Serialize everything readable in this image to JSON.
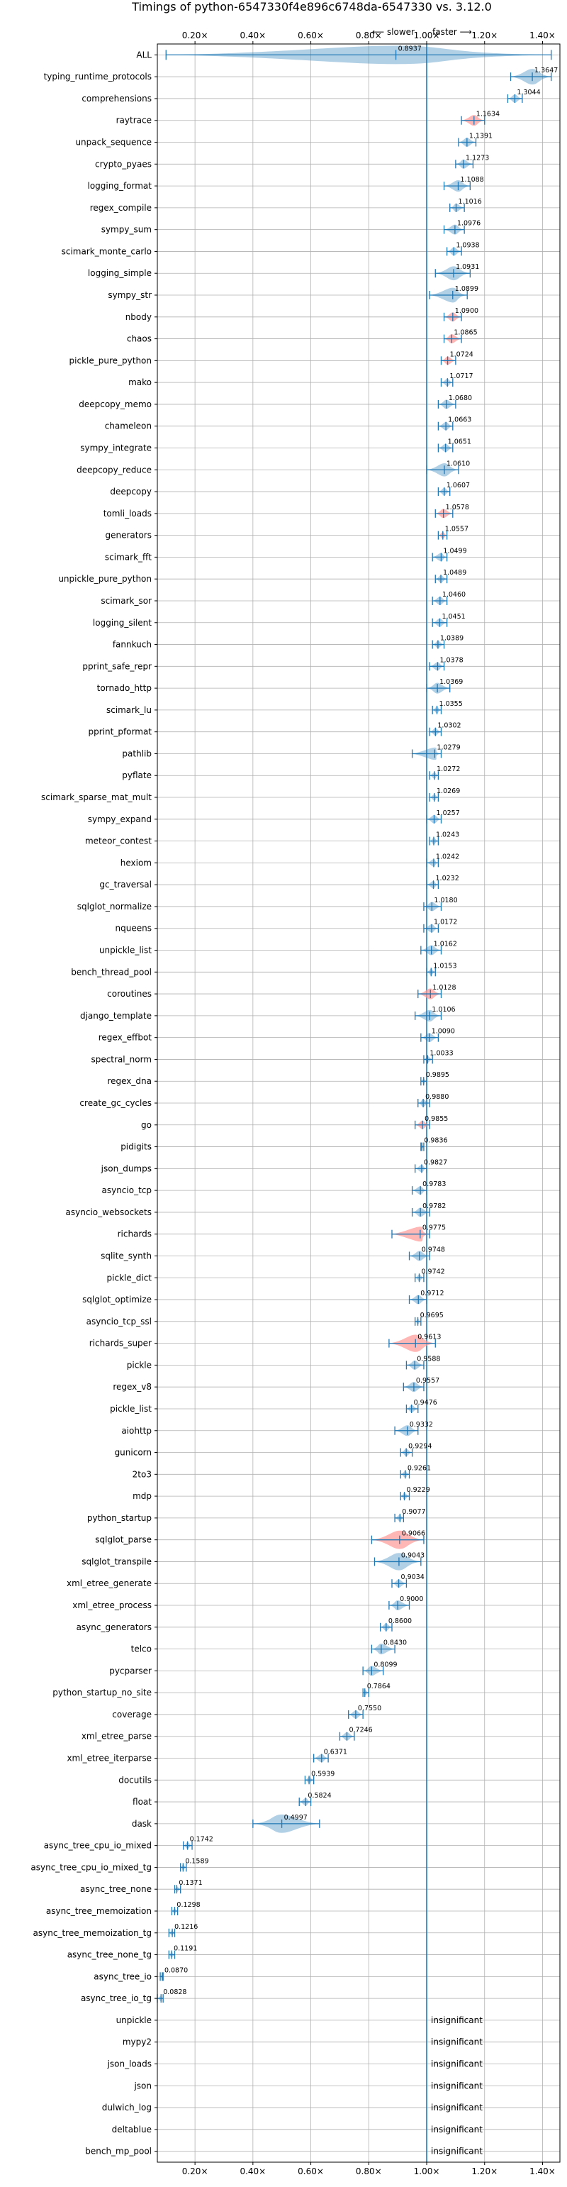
{
  "chart_data": {
    "type": "violin",
    "title": "Timings of python-6547330f4e896c6748da-6547330 vs. 3.12.0",
    "xlabel": "",
    "ylabel": "",
    "xlim": [
      0.07,
      1.46
    ],
    "xticks": [
      0.2,
      0.4,
      0.6,
      0.8,
      1.0,
      1.2,
      1.4
    ],
    "xtick_labels": [
      "0.20×",
      "0.40×",
      "0.60×",
      "0.80×",
      "1.00×",
      "1.20×",
      "1.40×"
    ],
    "grid": true,
    "reference_line": 1.0,
    "annotation_slower": "⟵ slower",
    "annotation_faster": "faster ⟶",
    "insignificant_label": "insignificant",
    "colors": {
      "violin_blue": "#1f77b4",
      "violin_red": "#ff9896",
      "line": "#1f77b4",
      "grid": "#b0b0b0"
    },
    "categories": [
      "ALL",
      "typing_runtime_protocols",
      "comprehensions",
      "raytrace",
      "unpack_sequence",
      "crypto_pyaes",
      "logging_format",
      "regex_compile",
      "sympy_sum",
      "scimark_monte_carlo",
      "logging_simple",
      "sympy_str",
      "nbody",
      "chaos",
      "pickle_pure_python",
      "mako",
      "deepcopy_memo",
      "chameleon",
      "sympy_integrate",
      "deepcopy_reduce",
      "deepcopy",
      "tomli_loads",
      "generators",
      "scimark_fft",
      "unpickle_pure_python",
      "scimark_sor",
      "logging_silent",
      "fannkuch",
      "pprint_safe_repr",
      "tornado_http",
      "scimark_lu",
      "pprint_pformat",
      "pathlib",
      "pyflate",
      "scimark_sparse_mat_mult",
      "sympy_expand",
      "meteor_contest",
      "hexiom",
      "gc_traversal",
      "sqlglot_normalize",
      "nqueens",
      "unpickle_list",
      "bench_thread_pool",
      "coroutines",
      "django_template",
      "regex_effbot",
      "spectral_norm",
      "regex_dna",
      "create_gc_cycles",
      "go",
      "pidigits",
      "json_dumps",
      "asyncio_tcp",
      "asyncio_websockets",
      "richards",
      "sqlite_synth",
      "pickle_dict",
      "sqlglot_optimize",
      "asyncio_tcp_ssl",
      "richards_super",
      "pickle",
      "regex_v8",
      "pickle_list",
      "aiohttp",
      "gunicorn",
      "2to3",
      "mdp",
      "python_startup",
      "sqlglot_parse",
      "sqlglot_transpile",
      "xml_etree_generate",
      "xml_etree_process",
      "async_generators",
      "telco",
      "pycparser",
      "python_startup_no_site",
      "coverage",
      "xml_etree_parse",
      "xml_etree_iterparse",
      "docutils",
      "float",
      "dask",
      "async_tree_cpu_io_mixed",
      "async_tree_cpu_io_mixed_tg",
      "async_tree_none",
      "async_tree_memoization",
      "async_tree_memoization_tg",
      "async_tree_none_tg",
      "async_tree_io",
      "async_tree_io_tg",
      "unpickle",
      "mypy2",
      "json_loads",
      "json",
      "dulwich_log",
      "deltablue",
      "bench_mp_pool"
    ],
    "values": [
      0.8937,
      1.3647,
      1.3044,
      1.1634,
      1.1391,
      1.1273,
      1.1088,
      1.1016,
      1.0976,
      1.0938,
      1.0931,
      1.0899,
      1.09,
      1.0865,
      1.0724,
      1.0717,
      1.068,
      1.0663,
      1.0651,
      1.061,
      1.0607,
      1.0578,
      1.0557,
      1.0499,
      1.0489,
      1.046,
      1.0451,
      1.0389,
      1.0378,
      1.0369,
      1.0355,
      1.0302,
      1.0279,
      1.0272,
      1.0269,
      1.0257,
      1.0243,
      1.0242,
      1.0232,
      1.018,
      1.0172,
      1.0162,
      1.0153,
      1.0128,
      1.0106,
      1.009,
      1.0033,
      0.9895,
      0.988,
      0.9855,
      0.9836,
      0.9827,
      0.9783,
      0.9782,
      0.9775,
      0.9748,
      0.9742,
      0.9712,
      0.9695,
      0.9613,
      0.9588,
      0.9557,
      0.9476,
      0.9332,
      0.9294,
      0.9261,
      0.9229,
      0.9077,
      0.9066,
      0.9043,
      0.9034,
      0.9,
      0.86,
      0.843,
      0.8099,
      0.7864,
      0.755,
      0.7246,
      0.6371,
      0.5939,
      0.5824,
      0.4997,
      0.1742,
      0.1589,
      0.1371,
      0.1298,
      0.1216,
      0.1191,
      0.087,
      0.0828,
      null,
      null,
      null,
      null,
      null,
      null,
      null
    ],
    "value_labels": [
      "0.8937",
      "1.3647",
      "1.3044",
      "1.1634",
      "1.1391",
      "1.1273",
      "1.1088",
      "1.1016",
      "1.0976",
      "1.0938",
      "1.0931",
      "1.0899",
      "1.0900",
      "1.0865",
      "1.0724",
      "1.0717",
      "1.0680",
      "1.0663",
      "1.0651",
      "1.0610",
      "1.0607",
      "1.0578",
      "1.0557",
      "1.0499",
      "1.0489",
      "1.0460",
      "1.0451",
      "1.0389",
      "1.0378",
      "1.0369",
      "1.0355",
      "1.0302",
      "1.0279",
      "1.0272",
      "1.0269",
      "1.0257",
      "1.0243",
      "1.0242",
      "1.0232",
      "1.0180",
      "1.0172",
      "1.0162",
      "1.0153",
      "1.0128",
      "1.0106",
      "1.0090",
      "1.0033",
      "0.9895",
      "0.9880",
      "0.9855",
      "0.9836",
      "0.9827",
      "0.9783",
      "0.9782",
      "0.9775",
      "0.9748",
      "0.9742",
      "0.9712",
      "0.9695",
      "0.9613",
      "0.9588",
      "0.9557",
      "0.9476",
      "0.9332",
      "0.9294",
      "0.9261",
      "0.9229",
      "0.9077",
      "0.9066",
      "0.9043",
      "0.9034",
      "0.9000",
      "0.8600",
      "0.8430",
      "0.8099",
      "0.7864",
      "0.7550",
      "0.7246",
      "0.6371",
      "0.5939",
      "0.5824",
      "0.4997",
      "0.1742",
      "0.1589",
      "0.1371",
      "0.1298",
      "0.1216",
      "0.1191",
      "0.0870",
      "0.0828",
      "",
      "",
      "",
      "",
      "",
      "",
      ""
    ],
    "ranges": [
      [
        0.1,
        1.43
      ],
      [
        1.29,
        1.43
      ],
      [
        1.28,
        1.33
      ],
      [
        1.12,
        1.2
      ],
      [
        1.11,
        1.17
      ],
      [
        1.1,
        1.16
      ],
      [
        1.06,
        1.15
      ],
      [
        1.08,
        1.13
      ],
      [
        1.06,
        1.13
      ],
      [
        1.07,
        1.12
      ],
      [
        1.03,
        1.15
      ],
      [
        1.01,
        1.14
      ],
      [
        1.06,
        1.12
      ],
      [
        1.06,
        1.12
      ],
      [
        1.05,
        1.1
      ],
      [
        1.05,
        1.09
      ],
      [
        1.04,
        1.1
      ],
      [
        1.04,
        1.09
      ],
      [
        1.04,
        1.09
      ],
      [
        1.0,
        1.11
      ],
      [
        1.04,
        1.08
      ],
      [
        1.03,
        1.09
      ],
      [
        1.04,
        1.07
      ],
      [
        1.02,
        1.07
      ],
      [
        1.03,
        1.07
      ],
      [
        1.02,
        1.07
      ],
      [
        1.02,
        1.07
      ],
      [
        1.02,
        1.06
      ],
      [
        1.01,
        1.06
      ],
      [
        1.0,
        1.08
      ],
      [
        1.02,
        1.05
      ],
      [
        1.01,
        1.05
      ],
      [
        0.95,
        1.05
      ],
      [
        1.01,
        1.04
      ],
      [
        1.01,
        1.04
      ],
      [
        1.0,
        1.05
      ],
      [
        1.01,
        1.04
      ],
      [
        1.0,
        1.04
      ],
      [
        1.0,
        1.04
      ],
      [
        0.99,
        1.05
      ],
      [
        0.99,
        1.04
      ],
      [
        0.98,
        1.05
      ],
      [
        1.0,
        1.03
      ],
      [
        0.97,
        1.05
      ],
      [
        0.96,
        1.05
      ],
      [
        0.98,
        1.04
      ],
      [
        0.99,
        1.02
      ],
      [
        0.98,
        1.0
      ],
      [
        0.97,
        1.01
      ],
      [
        0.96,
        1.01
      ],
      [
        0.98,
        0.99
      ],
      [
        0.96,
        1.0
      ],
      [
        0.95,
        1.0
      ],
      [
        0.95,
        1.01
      ],
      [
        0.88,
        1.01
      ],
      [
        0.94,
        1.01
      ],
      [
        0.96,
        0.99
      ],
      [
        0.94,
        1.0
      ],
      [
        0.96,
        0.98
      ],
      [
        0.87,
        1.03
      ],
      [
        0.93,
        0.99
      ],
      [
        0.92,
        0.99
      ],
      [
        0.93,
        0.97
      ],
      [
        0.89,
        0.97
      ],
      [
        0.91,
        0.95
      ],
      [
        0.91,
        0.94
      ],
      [
        0.91,
        0.94
      ],
      [
        0.89,
        0.92
      ],
      [
        0.81,
        0.99
      ],
      [
        0.82,
        0.98
      ],
      [
        0.88,
        0.93
      ],
      [
        0.87,
        0.94
      ],
      [
        0.84,
        0.88
      ],
      [
        0.81,
        0.89
      ],
      [
        0.78,
        0.85
      ],
      [
        0.78,
        0.8
      ],
      [
        0.73,
        0.78
      ],
      [
        0.7,
        0.75
      ],
      [
        0.61,
        0.66
      ],
      [
        0.58,
        0.61
      ],
      [
        0.56,
        0.6
      ],
      [
        0.4,
        0.63
      ],
      [
        0.16,
        0.19
      ],
      [
        0.15,
        0.17
      ],
      [
        0.13,
        0.15
      ],
      [
        0.12,
        0.14
      ],
      [
        0.11,
        0.13
      ],
      [
        0.11,
        0.13
      ],
      [
        0.08,
        0.09
      ],
      [
        0.07,
        0.09
      ],
      null,
      null,
      null,
      null,
      null,
      null,
      null
    ],
    "highlighted": [
      "raytrace",
      "nbody",
      "chaos",
      "pickle_pure_python",
      "tomli_loads",
      "generators",
      "coroutines",
      "go",
      "richards",
      "richards_super",
      "sqlglot_parse"
    ]
  }
}
